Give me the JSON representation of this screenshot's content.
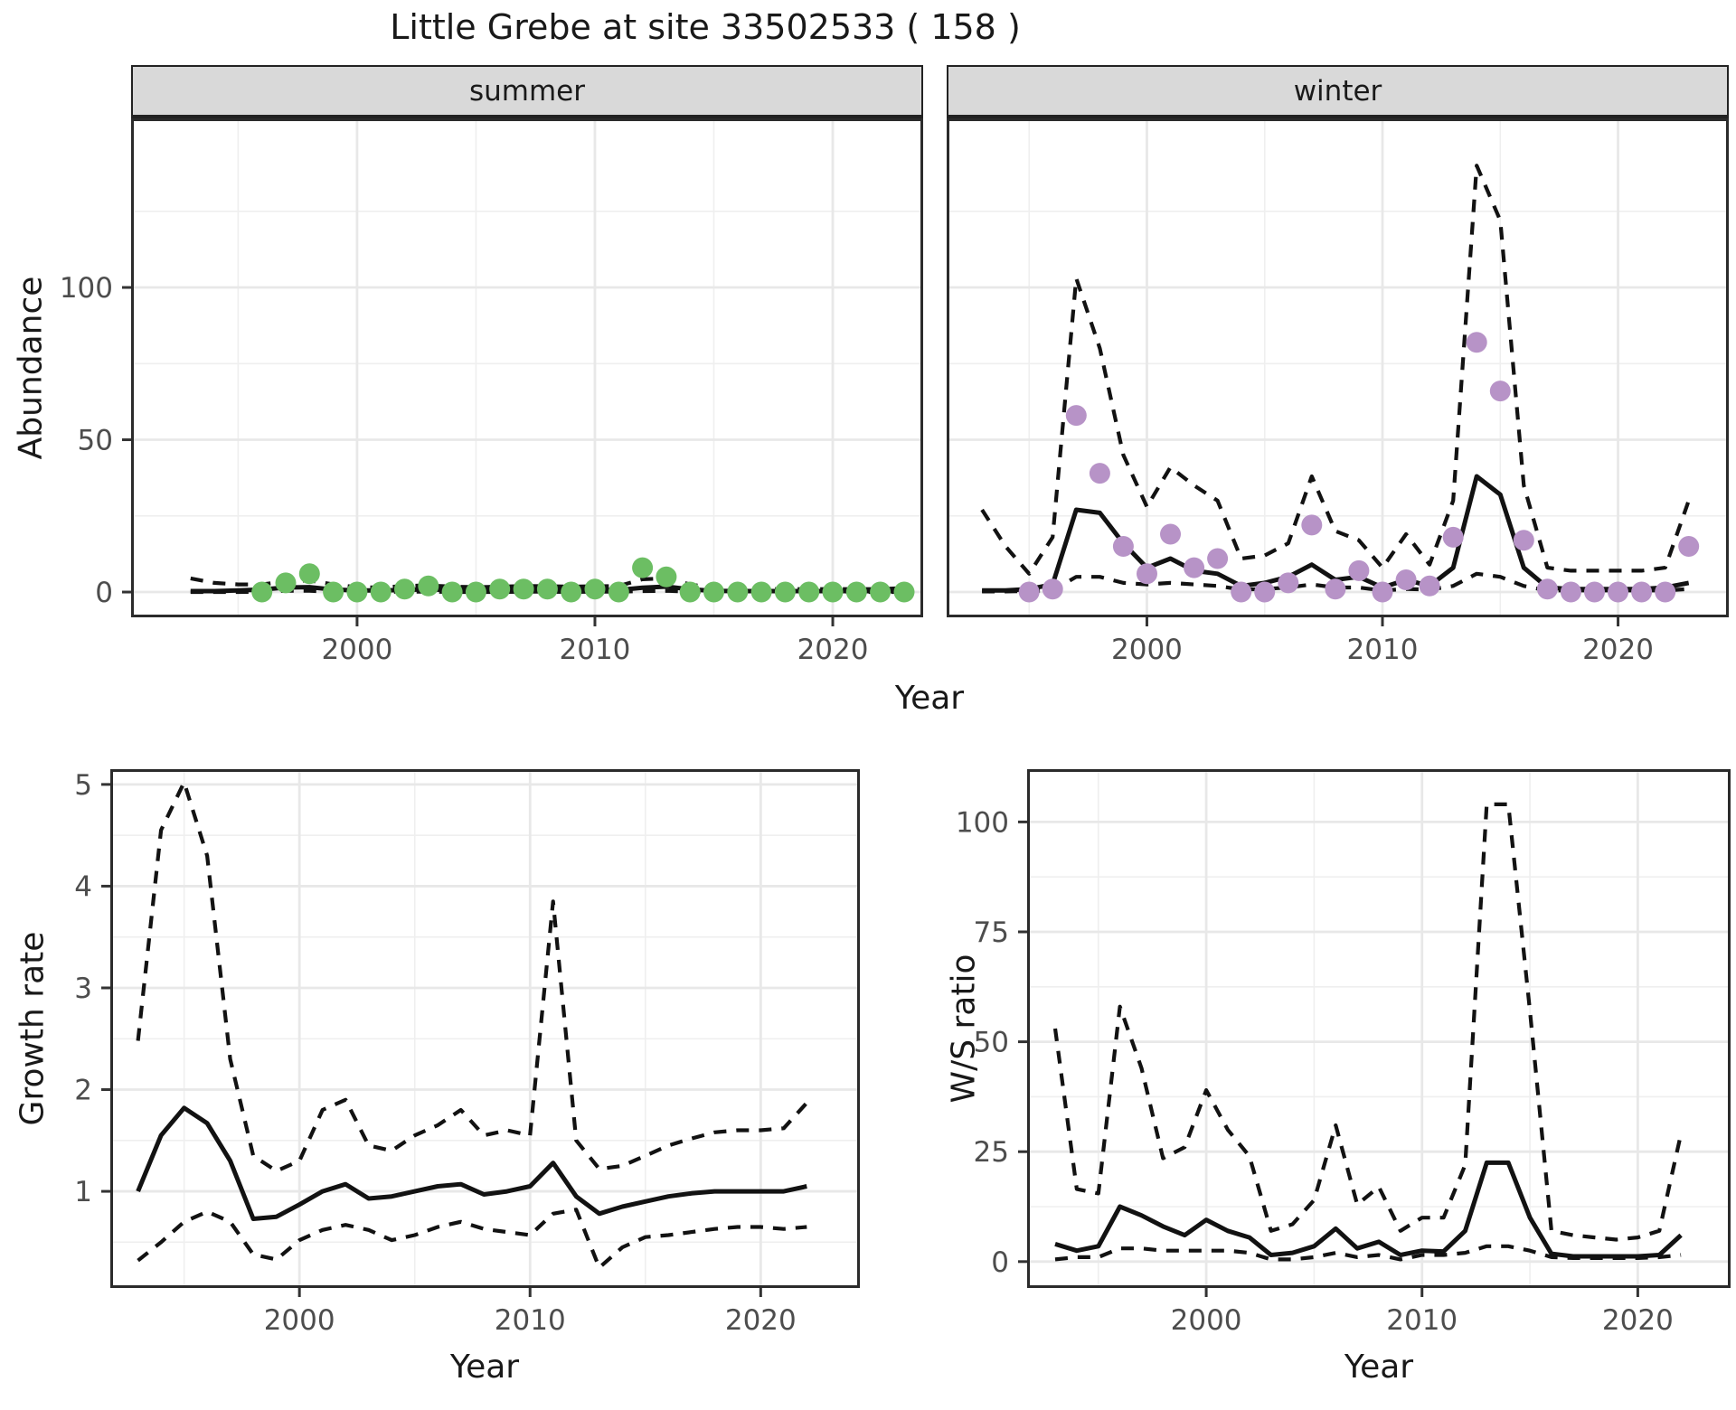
{
  "title": "Little Grebe at site 33502533 ( 158 )",
  "facets": {
    "summer": "summer",
    "winter": "winter"
  },
  "axis_labels": {
    "abundance": "Abundance",
    "year_top": "Year",
    "growth": "Growth rate",
    "year_bottom_left": "Year",
    "ratio": "W/S ratio",
    "year_bottom_right": "Year"
  },
  "colors": {
    "summer_points": "#6cbe63",
    "winter_points": "#b793c7",
    "line": "#121212",
    "grid_major": "#e8e8e8",
    "grid_minor": "#efefef",
    "panel_border": "#2b2b2b",
    "axis_text": "#4d4d4d",
    "strip_bg": "#d9d9d9"
  },
  "chart_data": [
    {
      "type": "line",
      "facet": "summer",
      "title": "summer abundance",
      "xlabel": "Year",
      "ylabel": "Abundance",
      "x": [
        1993,
        1994,
        1995,
        1996,
        1997,
        1998,
        1999,
        2000,
        2001,
        2002,
        2003,
        2004,
        2005,
        2006,
        2007,
        2008,
        2009,
        2010,
        2011,
        2012,
        2013,
        2014,
        2015,
        2016,
        2017,
        2018,
        2019,
        2020,
        2021,
        2022,
        2023
      ],
      "series": [
        {
          "name": "fitted",
          "style": "solid",
          "values": [
            0.3,
            0.3,
            0.5,
            0.8,
            1.5,
            1.6,
            0.8,
            0.5,
            0.5,
            0.7,
            0.9,
            0.6,
            0.5,
            0.6,
            0.7,
            0.7,
            0.6,
            0.7,
            0.7,
            1.4,
            1.8,
            0.9,
            0.4,
            0.3,
            0.3,
            0.3,
            0.3,
            0.3,
            0.3,
            0.3,
            0.4
          ]
        },
        {
          "name": "upper_ci",
          "style": "dashed",
          "values": [
            4.5,
            3,
            2.5,
            2.5,
            3.5,
            3.8,
            2.5,
            1.6,
            1.5,
            2,
            2.2,
            1.8,
            1.6,
            1.8,
            2,
            1.9,
            1.8,
            1.9,
            2,
            4.2,
            4.5,
            2.5,
            1.3,
            1,
            1,
            1,
            1,
            1,
            1,
            1,
            1.3
          ]
        },
        {
          "name": "lower_ci",
          "style": "dashed",
          "values": [
            0,
            0,
            0,
            0.1,
            0.4,
            0.4,
            0.1,
            0,
            0,
            0.1,
            0.1,
            0,
            0,
            0,
            0.1,
            0.1,
            0,
            0.1,
            0.1,
            0.3,
            0.4,
            0.1,
            0,
            0,
            0,
            0,
            0,
            0,
            0,
            0,
            0
          ]
        }
      ],
      "points": {
        "name": "observed_summer_counts",
        "color": "#6cbe63",
        "x": [
          1996,
          1997,
          1998,
          1999,
          2000,
          2001,
          2002,
          2003,
          2004,
          2005,
          2006,
          2007,
          2008,
          2009,
          2010,
          2011,
          2012,
          2013,
          2014,
          2015,
          2016,
          2017,
          2018,
          2019,
          2020,
          2021,
          2022,
          2023
        ],
        "y": [
          0,
          3,
          6,
          0,
          0,
          0,
          1,
          2,
          0,
          0,
          1,
          1,
          1,
          0,
          1,
          0,
          8,
          5,
          0,
          0,
          0,
          0,
          0,
          0,
          0,
          0,
          0,
          0
        ]
      },
      "xlim": [
        1990.5,
        2023.8
      ],
      "ylim": [
        -8.3,
        155.5
      ],
      "xticks": [
        2000,
        2010,
        2020
      ],
      "xticks_minor": [
        1995,
        2005,
        2015
      ],
      "yticks": [
        0,
        50,
        100
      ],
      "yticks_minor": [
        25,
        75,
        125
      ],
      "grid": true,
      "legend": "none"
    },
    {
      "type": "line",
      "facet": "winter",
      "title": "winter abundance",
      "xlabel": "Year",
      "ylabel": "Abundance",
      "x": [
        1993,
        1994,
        1995,
        1996,
        1997,
        1998,
        1999,
        2000,
        2001,
        2002,
        2003,
        2004,
        2005,
        2006,
        2007,
        2008,
        2009,
        2010,
        2011,
        2012,
        2013,
        2014,
        2015,
        2016,
        2017,
        2018,
        2019,
        2020,
        2021,
        2022,
        2023
      ],
      "series": [
        {
          "name": "fitted",
          "style": "solid",
          "values": [
            0.5,
            0.5,
            1,
            2.5,
            27,
            26,
            16,
            8,
            11,
            7,
            6,
            2,
            3,
            5,
            9,
            4,
            5,
            1.5,
            4,
            2,
            8,
            38,
            32,
            8,
            1.5,
            1,
            1,
            1,
            1,
            1.5,
            3
          ]
        },
        {
          "name": "upper_ci",
          "style": "dashed",
          "values": [
            27,
            15,
            6,
            18,
            103,
            80,
            45,
            28,
            41,
            35,
            30,
            11,
            12,
            16,
            38,
            20,
            17,
            8,
            19,
            9,
            30,
            140,
            122,
            35,
            8,
            7,
            7,
            7,
            7,
            8,
            30
          ]
        },
        {
          "name": "lower_ci",
          "style": "dashed",
          "values": [
            0.2,
            0.2,
            0.3,
            0.5,
            5,
            5,
            3,
            2.5,
            3,
            2.5,
            2,
            0.8,
            1,
            1.5,
            2.5,
            1.5,
            1.5,
            0.5,
            1,
            0.8,
            2,
            6,
            5,
            2,
            0.5,
            0.5,
            0.5,
            0.5,
            0.5,
            0.5,
            1
          ]
        }
      ],
      "points": {
        "name": "observed_winter_counts",
        "color": "#b793c7",
        "x": [
          1995,
          1996,
          1997,
          1998,
          1999,
          2000,
          2001,
          2002,
          2003,
          2004,
          2005,
          2006,
          2007,
          2008,
          2009,
          2010,
          2011,
          2012,
          2013,
          2014,
          2015,
          2016,
          2017,
          2018,
          2019,
          2020,
          2021,
          2022,
          2023
        ],
        "y": [
          0,
          1,
          58,
          39,
          15,
          6,
          19,
          8,
          11,
          0,
          0,
          3,
          22,
          1,
          7,
          0,
          4,
          2,
          18,
          82,
          66,
          17,
          1,
          0,
          0,
          0,
          0,
          0,
          15
        ]
      },
      "xlim": [
        1991.5,
        2024.7
      ],
      "ylim": [
        -8.3,
        155.5
      ],
      "xticks": [
        2000,
        2010,
        2020
      ],
      "xticks_minor": [
        1995,
        2005,
        2015
      ],
      "yticks": [
        0,
        50,
        100
      ],
      "yticks_minor": [
        25,
        75,
        125
      ],
      "grid": true,
      "legend": "none"
    },
    {
      "type": "line",
      "facet": "",
      "title": "growth rate",
      "xlabel": "Year",
      "ylabel": "Growth rate",
      "x": [
        1993,
        1994,
        1995,
        1996,
        1997,
        1998,
        1999,
        2000,
        2001,
        2002,
        2003,
        2004,
        2005,
        2006,
        2007,
        2008,
        2009,
        2010,
        2011,
        2012,
        2013,
        2014,
        2015,
        2016,
        2017,
        2018,
        2019,
        2020,
        2021,
        2022
      ],
      "series": [
        {
          "name": "fitted",
          "style": "solid",
          "values": [
            1.0,
            1.55,
            1.82,
            1.67,
            1.3,
            0.73,
            0.75,
            0.87,
            1.0,
            1.07,
            0.93,
            0.95,
            1.0,
            1.05,
            1.07,
            0.97,
            1.0,
            1.05,
            1.28,
            0.95,
            0.78,
            0.85,
            0.9,
            0.95,
            0.98,
            1.0,
            1.0,
            1.0,
            1.0,
            1.05
          ]
        },
        {
          "name": "upper_ci",
          "style": "dashed",
          "values": [
            2.48,
            4.55,
            5.02,
            4.3,
            2.3,
            1.35,
            1.2,
            1.3,
            1.8,
            1.9,
            1.45,
            1.4,
            1.55,
            1.65,
            1.8,
            1.55,
            1.6,
            1.55,
            3.85,
            1.5,
            1.22,
            1.25,
            1.35,
            1.45,
            1.52,
            1.58,
            1.6,
            1.6,
            1.62,
            1.87
          ]
        },
        {
          "name": "lower_ci",
          "style": "dashed",
          "values": [
            0.32,
            0.5,
            0.7,
            0.8,
            0.7,
            0.38,
            0.33,
            0.52,
            0.62,
            0.67,
            0.62,
            0.52,
            0.57,
            0.65,
            0.7,
            0.63,
            0.6,
            0.57,
            0.78,
            0.82,
            0.25,
            0.45,
            0.55,
            0.57,
            0.6,
            0.63,
            0.65,
            0.65,
            0.63,
            0.65
          ]
        }
      ],
      "points": null,
      "xlim": [
        1991.8,
        2024.3
      ],
      "ylim": [
        0.05,
        5.15
      ],
      "xticks": [
        2000,
        2010,
        2020
      ],
      "xticks_minor": [
        1995,
        2005,
        2015
      ],
      "yticks": [
        1,
        2,
        3,
        4,
        5
      ],
      "yticks_minor": [
        0.5,
        1.5,
        2.5,
        3.5,
        4.5
      ],
      "grid": true,
      "legend": "none"
    },
    {
      "type": "line",
      "facet": "",
      "title": "winter to summer ratio",
      "xlabel": "Year",
      "ylabel": "W/S ratio",
      "x": [
        1993,
        1994,
        1995,
        1996,
        1997,
        1998,
        1999,
        2000,
        2001,
        2002,
        2003,
        2004,
        2005,
        2006,
        2007,
        2008,
        2009,
        2010,
        2011,
        2012,
        2013,
        2014,
        2015,
        2016,
        2017,
        2018,
        2019,
        2020,
        2021,
        2022
      ],
      "series": [
        {
          "name": "fitted",
          "style": "solid",
          "values": [
            4,
            2.5,
            3.5,
            12.5,
            10.5,
            8,
            6,
            9.5,
            7,
            5.5,
            1.5,
            2,
            3.5,
            7.5,
            3,
            4.5,
            1.5,
            2.5,
            2.3,
            7,
            22.5,
            22.5,
            10,
            1.8,
            1.2,
            1.2,
            1.2,
            1.2,
            1.5,
            6
          ]
        },
        {
          "name": "upper_ci",
          "style": "dashed",
          "values": [
            53,
            16.5,
            15.5,
            58,
            44,
            23.5,
            26,
            39,
            30,
            24,
            7,
            8.5,
            14,
            31,
            13,
            17,
            7,
            10,
            10,
            22,
            104,
            104,
            57,
            7,
            6,
            5.5,
            5,
            5.5,
            7,
            29
          ]
        },
        {
          "name": "lower_ci",
          "style": "dashed",
          "values": [
            0.5,
            1,
            1,
            3,
            3,
            2.5,
            2.5,
            2.5,
            2.5,
            2,
            0.5,
            0.5,
            1,
            2,
            1,
            1.5,
            0.5,
            1.5,
            1.5,
            2,
            3.5,
            3.5,
            2.5,
            1,
            0.8,
            0.8,
            0.8,
            0.8,
            1,
            1.5
          ]
        }
      ],
      "points": null,
      "xlim": [
        1991.7,
        2024.3
      ],
      "ylim": [
        -6,
        112
      ],
      "xticks": [
        2000,
        2010,
        2020
      ],
      "xticks_minor": [
        1995,
        2005,
        2015
      ],
      "yticks": [
        0,
        25,
        50,
        75,
        100
      ],
      "yticks_minor": [
        12.5,
        37.5,
        62.5,
        87.5
      ],
      "grid": true,
      "legend": "none"
    }
  ]
}
